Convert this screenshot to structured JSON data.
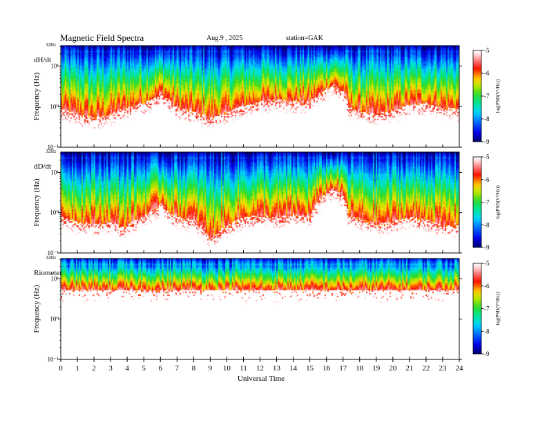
{
  "header": {
    "title": "Magnetic  Field  Spectra",
    "date": "Aug.9  , 2025",
    "station": "station=GAK"
  },
  "chart_data": [
    {
      "type": "heatmap",
      "panel_label": "dH/dt",
      "top_label": "32Hz",
      "ylabel": "Frequency  (Hz)",
      "yscale": "log",
      "ylim": [
        0.1,
        32
      ],
      "yticks": [
        {
          "value": 10,
          "label": "10¹"
        },
        {
          "value": 1,
          "label": "10⁰"
        },
        {
          "value": 0.1,
          "label": "10⁻¹"
        }
      ],
      "xlim": [
        0,
        24
      ],
      "colorbar": {
        "label": "log(PSD(V²/Hz))",
        "ticks": [
          -5,
          -6,
          -7,
          -8,
          -9
        ],
        "range": [
          -9,
          -5
        ]
      },
      "noise_floor_hz": [
        [
          0,
          0.9
        ],
        [
          1,
          0.7
        ],
        [
          2,
          0.55
        ],
        [
          3,
          0.7
        ],
        [
          4,
          1.0
        ],
        [
          5,
          1.3
        ],
        [
          5.8,
          1.8
        ],
        [
          6,
          2.4
        ],
        [
          6.5,
          1.5
        ],
        [
          7,
          1.0
        ],
        [
          8,
          0.8
        ],
        [
          9,
          0.55
        ],
        [
          10,
          0.8
        ],
        [
          11,
          1.1
        ],
        [
          12,
          1.4
        ],
        [
          13,
          1.6
        ],
        [
          14,
          1.4
        ],
        [
          15,
          1.5
        ],
        [
          15.8,
          2.6
        ],
        [
          16.4,
          3.6
        ],
        [
          17,
          2.5
        ],
        [
          17.3,
          1.0
        ],
        [
          18,
          0.8
        ],
        [
          19,
          0.7
        ],
        [
          20,
          0.85
        ],
        [
          21,
          1.2
        ],
        [
          22,
          1.3
        ],
        [
          23,
          1.0
        ],
        [
          24,
          0.9
        ]
      ]
    },
    {
      "type": "heatmap",
      "panel_label": "dD/dt",
      "top_label": "32Hz",
      "ylabel": "Frequency  (Hz)",
      "yscale": "log",
      "ylim": [
        0.1,
        32
      ],
      "yticks": [
        {
          "value": 10,
          "label": "10¹"
        },
        {
          "value": 1,
          "label": "10⁰"
        },
        {
          "value": 0.1,
          "label": "10⁻¹"
        }
      ],
      "xlim": [
        0,
        24
      ],
      "colorbar": {
        "label": "log(PSD(V²/Hz))",
        "ticks": [
          -5,
          -6,
          -7,
          -8,
          -9
        ],
        "range": [
          -9,
          -5
        ]
      },
      "noise_floor_hz": [
        [
          0,
          0.8
        ],
        [
          1,
          0.6
        ],
        [
          2,
          0.55
        ],
        [
          3,
          0.6
        ],
        [
          3.8,
          0.45
        ],
        [
          4.5,
          0.7
        ],
        [
          5,
          0.9
        ],
        [
          5.8,
          1.4
        ],
        [
          6,
          2.0
        ],
        [
          6.5,
          1.0
        ],
        [
          7,
          0.8
        ],
        [
          8,
          0.7
        ],
        [
          9,
          0.22
        ],
        [
          10,
          0.5
        ],
        [
          11,
          0.8
        ],
        [
          12,
          0.9
        ],
        [
          13,
          0.8
        ],
        [
          14,
          1.0
        ],
        [
          15,
          0.9
        ],
        [
          15.8,
          2.8
        ],
        [
          16.4,
          4.2
        ],
        [
          17,
          2.6
        ],
        [
          17.3,
          0.9
        ],
        [
          18,
          0.75
        ],
        [
          19,
          0.55
        ],
        [
          20,
          0.65
        ],
        [
          21,
          0.8
        ],
        [
          22,
          0.7
        ],
        [
          23,
          0.5
        ],
        [
          24,
          0.5
        ]
      ]
    },
    {
      "type": "heatmap",
      "panel_label": "Riometer",
      "top_label": "32Hz",
      "ylabel": "Frequency  (Hz)",
      "yscale": "log",
      "ylim": [
        0.1,
        32
      ],
      "yticks": [
        {
          "value": 10,
          "label": "10¹"
        },
        {
          "value": 1,
          "label": "10⁰"
        },
        {
          "value": 0.1,
          "label": "10⁻¹"
        }
      ],
      "xlim": [
        0,
        24
      ],
      "colorbar": {
        "label": "log(PSD(V²/Hz))",
        "ticks": [
          -5,
          -6,
          -7,
          -8,
          -9
        ],
        "range": [
          -9,
          -5
        ]
      },
      "noise_floor_hz": [
        [
          0,
          5.5
        ],
        [
          24,
          5.5
        ]
      ]
    }
  ],
  "xaxis": {
    "label": "Universal  Time",
    "ticks": [
      "0",
      "1",
      "2",
      "3",
      "4",
      "5",
      "6",
      "7",
      "8",
      "9",
      "10",
      "11",
      "12",
      "13",
      "14",
      "15",
      "16",
      "17",
      "18",
      "19",
      "20",
      "21",
      "22",
      "23",
      "24"
    ]
  }
}
